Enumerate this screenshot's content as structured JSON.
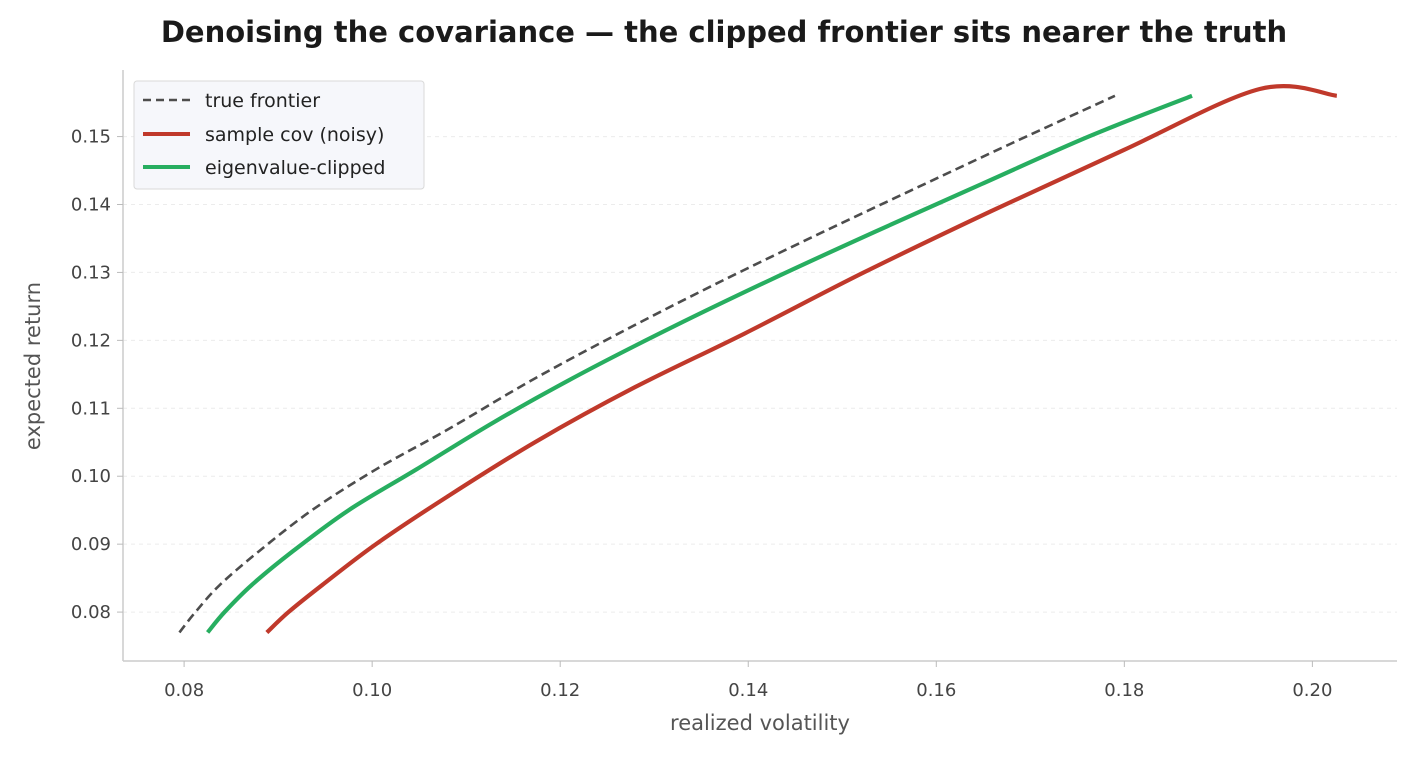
{
  "chart_data": {
    "type": "line",
    "title": "Denoising the covariance — the clipped frontier sits nearer the truth",
    "xlabel": "realized volatility",
    "ylabel": "expected return",
    "xlim": [
      0.0735,
      0.209
    ],
    "ylim": [
      0.0728,
      0.1598
    ],
    "xticks": [
      0.08,
      0.1,
      0.12,
      0.14,
      0.16,
      0.18,
      0.2
    ],
    "xtick_labels": [
      "0.08",
      "0.10",
      "0.12",
      "0.14",
      "0.16",
      "0.18",
      "0.20"
    ],
    "yticks": [
      0.08,
      0.09,
      0.1,
      0.11,
      0.12,
      0.13,
      0.14,
      0.15
    ],
    "ytick_labels": [
      "0.08",
      "0.09",
      "0.10",
      "0.11",
      "0.12",
      "0.13",
      "0.14",
      "0.15"
    ],
    "grid": "horizontal dashed",
    "legend_position": "top-left",
    "series": [
      {
        "name": "true frontier",
        "color": "#4d4d4d",
        "style": "dashed",
        "x": [
          0.0795,
          0.0812,
          0.0838,
          0.088,
          0.0936,
          0.1004,
          0.1082,
          0.1168,
          0.1262,
          0.1361,
          0.1465,
          0.1572,
          0.168,
          0.179
        ],
        "y": [
          0.077,
          0.08,
          0.084,
          0.089,
          0.095,
          0.101,
          0.107,
          0.114,
          0.121,
          0.128,
          0.135,
          0.142,
          0.149,
          0.156
        ]
      },
      {
        "name": "sample cov (noisy)",
        "color": "#c0392b",
        "style": "solid",
        "x": [
          0.0888,
          0.0911,
          0.0947,
          0.1004,
          0.108,
          0.1173,
          0.1278,
          0.1396,
          0.1523,
          0.1658,
          0.1799,
          0.1944,
          0.2026
        ],
        "y": [
          0.077,
          0.08,
          0.084,
          0.09,
          0.097,
          0.105,
          0.113,
          0.121,
          0.13,
          0.139,
          0.148,
          0.157,
          0.156
        ]
      },
      {
        "name": "eigenvalue-clipped",
        "color": "#27ae60",
        "style": "solid",
        "x": [
          0.0825,
          0.0843,
          0.0872,
          0.0916,
          0.0975,
          0.1047,
          0.113,
          0.1221,
          0.132,
          0.1425,
          0.1535,
          0.1648,
          0.1762,
          0.1872
        ],
        "y": [
          0.077,
          0.08,
          0.084,
          0.089,
          0.095,
          0.101,
          0.108,
          0.115,
          0.122,
          0.129,
          0.136,
          0.143,
          0.15,
          0.156
        ]
      }
    ]
  }
}
